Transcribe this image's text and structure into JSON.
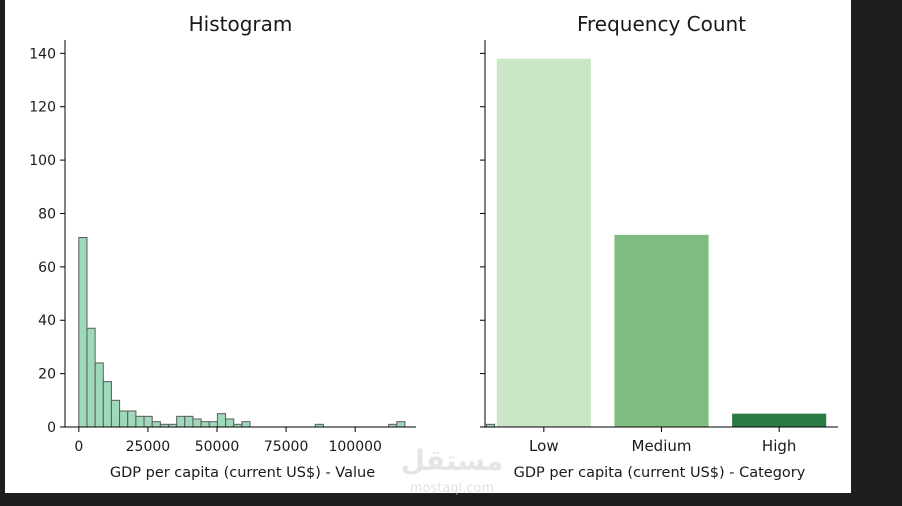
{
  "chart_data": [
    {
      "type": "bar",
      "title": "Histogram",
      "xlabel": "GDP per capita (current US$) - Value",
      "ylabel": "",
      "xlim": [
        -5000,
        122000
      ],
      "ylim": [
        0,
        145
      ],
      "xticks": [
        0,
        25000,
        50000,
        75000,
        100000
      ],
      "xtick_labels": [
        "0",
        "25000",
        "50000",
        "75000",
        "100000"
      ],
      "yticks": [
        0,
        20,
        40,
        60,
        80,
        100,
        120,
        140
      ],
      "ytick_labels": [
        "0",
        "20",
        "40",
        "60",
        "80",
        "100",
        "120",
        "140"
      ],
      "bin_width": 2950,
      "bin_start": 0,
      "counts": [
        71,
        37,
        24,
        17,
        10,
        6,
        6,
        4,
        4,
        2,
        1,
        1,
        4,
        4,
        3,
        2,
        2,
        5,
        3,
        1,
        2,
        0,
        0,
        0,
        0,
        0,
        0,
        0,
        0,
        1,
        0,
        0,
        0,
        0,
        0,
        0,
        0,
        0,
        1,
        2,
        0,
        0,
        0,
        0,
        0,
        0,
        0,
        0,
        0,
        0,
        1
      ],
      "color": "#9fd9bc",
      "edge_color": "#5a5a5a",
      "grid": false
    },
    {
      "type": "bar",
      "title": "Frequency Count",
      "xlabel": "GDP per capita (current US$) - Category",
      "ylabel": "",
      "ylim": [
        0,
        145
      ],
      "categories": [
        "Low",
        "Medium",
        "High"
      ],
      "values": [
        138,
        72,
        5
      ],
      "colors": [
        "#cbe5c7",
        "#7fbc80",
        "#2c7a44"
      ],
      "grid": false
    }
  ],
  "watermark": {
    "arabic": "مستقل",
    "latin": "mostaql.com"
  }
}
